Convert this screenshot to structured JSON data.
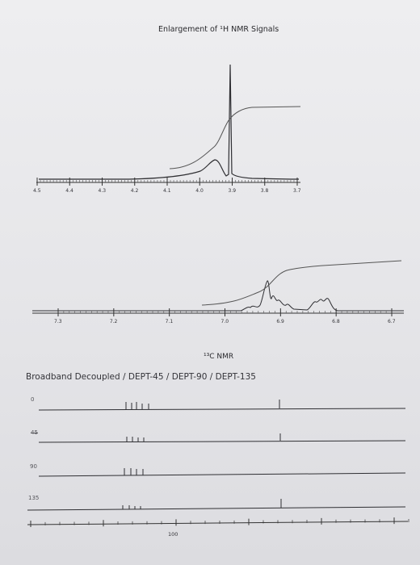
{
  "title": "Enlargement of ¹H NMR Signals",
  "c13_heading": "¹³C NMR",
  "dept_heading": "Broadband Decoupled / DEPT-45 / DEPT-90 / DEPT-135",
  "chart_data": [
    {
      "type": "line",
      "panel": "1H NMR enlargement (upper)",
      "x_ticks": [
        "4.5",
        "4.4",
        "4.3",
        "4.2",
        "4.1",
        "4.0",
        "3.9",
        "3.8",
        "3.7"
      ],
      "xlim": [
        4.5,
        3.7
      ],
      "peaks_ppm": [
        4.02,
        3.98
      ],
      "integral_curve": true
    },
    {
      "type": "line",
      "panel": "1H NMR enlargement (lower)",
      "x_ticks": [
        "7.3",
        "7.2",
        "7.1",
        "7.0",
        "6.9",
        "6.8",
        "6.7"
      ],
      "xlim": [
        7.35,
        6.7
      ],
      "peaks_ppm": [
        7.02,
        6.99,
        6.96,
        6.94,
        6.92,
        6.83,
        6.82
      ],
      "integral_curve": true
    },
    {
      "type": "line",
      "panel": "13C NMR DEPT spectra",
      "traces": [
        {
          "name": "0",
          "peak_group": "multiple peaks",
          "isolated_peak": true
        },
        {
          "name": "45",
          "peak_group": "multiple peaks",
          "isolated_peak": true
        },
        {
          "name": "90",
          "peak_group": "multiple peaks",
          "isolated_peak": false
        },
        {
          "name": "135",
          "peak_group": "multiple peaks",
          "isolated_peak": true
        }
      ],
      "x_ticks": [
        "100"
      ]
    }
  ]
}
